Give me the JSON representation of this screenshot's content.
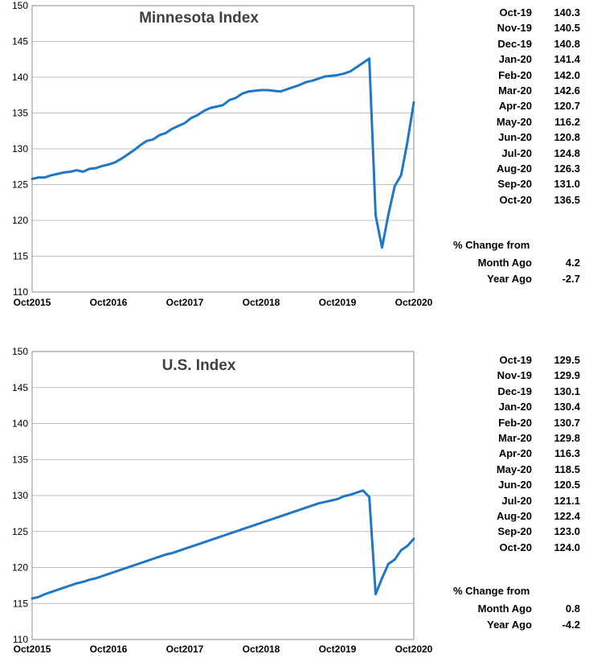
{
  "accent_color": "#1f77c6",
  "panels": [
    {
      "name": "minnesota",
      "side": {
        "months": [
          {
            "label": "Oct-19",
            "value": "140.3"
          },
          {
            "label": "Nov-19",
            "value": "140.5"
          },
          {
            "label": "Dec-19",
            "value": "140.8"
          },
          {
            "label": "Jan-20",
            "value": "141.4"
          },
          {
            "label": "Feb-20",
            "value": "142.0"
          },
          {
            "label": "Mar-20",
            "value": "142.6"
          },
          {
            "label": "Apr-20",
            "value": "120.7"
          },
          {
            "label": "May-20",
            "value": "116.2"
          },
          {
            "label": "Jun-20",
            "value": "120.8"
          },
          {
            "label": "Jul-20",
            "value": "124.8"
          },
          {
            "label": "Aug-20",
            "value": "126.3"
          },
          {
            "label": "Sep-20",
            "value": "131.0"
          },
          {
            "label": "Oct-20",
            "value": "136.5"
          }
        ],
        "change_header": "% Change from",
        "month_ago_label": "Month Ago",
        "month_ago_value": "4.2",
        "year_ago_label": "Year Ago",
        "year_ago_value": "-2.7"
      }
    },
    {
      "name": "us",
      "side": {
        "months": [
          {
            "label": "Oct-19",
            "value": "129.5"
          },
          {
            "label": "Nov-19",
            "value": "129.9"
          },
          {
            "label": "Dec-19",
            "value": "130.1"
          },
          {
            "label": "Jan-20",
            "value": "130.4"
          },
          {
            "label": "Feb-20",
            "value": "130.7"
          },
          {
            "label": "Mar-20",
            "value": "129.8"
          },
          {
            "label": "Apr-20",
            "value": "116.3"
          },
          {
            "label": "May-20",
            "value": "118.5"
          },
          {
            "label": "Jun-20",
            "value": "120.5"
          },
          {
            "label": "Jul-20",
            "value": "121.1"
          },
          {
            "label": "Aug-20",
            "value": "122.4"
          },
          {
            "label": "Sep-20",
            "value": "123.0"
          },
          {
            "label": "Oct-20",
            "value": "124.0"
          }
        ],
        "change_header": "% Change from",
        "month_ago_label": "Month Ago",
        "month_ago_value": "0.8",
        "year_ago_label": "Year Ago",
        "year_ago_value": "-4.2"
      }
    }
  ],
  "chart_data": [
    {
      "type": "line",
      "title": "Minnesota Index",
      "xlabel": "",
      "ylabel": "",
      "ylim": [
        110,
        150
      ],
      "yticks": [
        110,
        115,
        120,
        125,
        130,
        135,
        140,
        145,
        150
      ],
      "xlim": [
        "Oct-15",
        "Oct-20"
      ],
      "xticks": [
        "Oct2015",
        "Oct2016",
        "Oct2017",
        "Oct2018",
        "Oct2019",
        "Oct2020"
      ],
      "grid": true,
      "legend": "none",
      "series": [
        {
          "x": [
            "Oct-15",
            "Nov-15",
            "Dec-15",
            "Jan-16",
            "Feb-16",
            "Mar-16",
            "Apr-16",
            "May-16",
            "Jun-16",
            "Jul-16",
            "Aug-16",
            "Sep-16",
            "Oct-16",
            "Nov-16",
            "Dec-16",
            "Jan-17",
            "Feb-17",
            "Mar-17",
            "Apr-17",
            "May-17",
            "Jun-17",
            "Jul-17",
            "Aug-17",
            "Sep-17",
            "Oct-17",
            "Nov-17",
            "Dec-17",
            "Jan-18",
            "Feb-18",
            "Mar-18",
            "Apr-18",
            "May-18",
            "Jun-18",
            "Jul-18",
            "Aug-18",
            "Sep-18",
            "Oct-18",
            "Nov-18",
            "Dec-18",
            "Jan-19",
            "Feb-19",
            "Mar-19",
            "Apr-19",
            "May-19",
            "Jun-19",
            "Jul-19",
            "Aug-19",
            "Sep-19",
            "Oct-19",
            "Nov-19",
            "Dec-19",
            "Jan-20",
            "Feb-20",
            "Mar-20",
            "Apr-20",
            "May-20",
            "Jun-20",
            "Jul-20",
            "Aug-20",
            "Sep-20",
            "Oct-20"
          ],
          "values": [
            125.8,
            126.0,
            126.0,
            126.3,
            126.5,
            126.7,
            126.8,
            127.0,
            126.8,
            127.2,
            127.3,
            127.6,
            127.8,
            128.1,
            128.6,
            129.2,
            129.8,
            130.5,
            131.1,
            131.3,
            131.9,
            132.2,
            132.8,
            133.2,
            133.6,
            134.3,
            134.7,
            135.3,
            135.7,
            135.9,
            136.1,
            136.8,
            137.1,
            137.7,
            138.0,
            138.1,
            138.2,
            138.2,
            138.1,
            138.0,
            138.3,
            138.6,
            138.9,
            139.3,
            139.5,
            139.8,
            140.1,
            140.2,
            140.3,
            140.5,
            140.8,
            141.4,
            142.0,
            142.6,
            120.7,
            116.2,
            120.8,
            124.8,
            126.3,
            131.0,
            136.5
          ]
        }
      ]
    },
    {
      "type": "line",
      "title": "U.S. Index",
      "xlabel": "",
      "ylabel": "",
      "ylim": [
        110,
        150
      ],
      "yticks": [
        110,
        115,
        120,
        125,
        130,
        135,
        140,
        145,
        150
      ],
      "xlim": [
        "Oct-15",
        "Oct-20"
      ],
      "xticks": [
        "Oct2015",
        "Oct2016",
        "Oct2017",
        "Oct2018",
        "Oct2019",
        "Oct2020"
      ],
      "grid": true,
      "legend": "none",
      "series": [
        {
          "x": [
            "Oct-15",
            "Nov-15",
            "Dec-15",
            "Jan-16",
            "Feb-16",
            "Mar-16",
            "Apr-16",
            "May-16",
            "Jun-16",
            "Jul-16",
            "Aug-16",
            "Sep-16",
            "Oct-16",
            "Nov-16",
            "Dec-16",
            "Jan-17",
            "Feb-17",
            "Mar-17",
            "Apr-17",
            "May-17",
            "Jun-17",
            "Jul-17",
            "Aug-17",
            "Sep-17",
            "Oct-17",
            "Nov-17",
            "Dec-17",
            "Jan-18",
            "Feb-18",
            "Mar-18",
            "Apr-18",
            "May-18",
            "Jun-18",
            "Jul-18",
            "Aug-18",
            "Sep-18",
            "Oct-18",
            "Nov-18",
            "Dec-18",
            "Jan-19",
            "Feb-19",
            "Mar-19",
            "Apr-19",
            "May-19",
            "Jun-19",
            "Jul-19",
            "Aug-19",
            "Sep-19",
            "Oct-19",
            "Nov-19",
            "Dec-19",
            "Jan-20",
            "Feb-20",
            "Mar-20",
            "Apr-20",
            "May-20",
            "Jun-20",
            "Jul-20",
            "Aug-20",
            "Sep-20",
            "Oct-20"
          ],
          "values": [
            115.7,
            115.9,
            116.3,
            116.6,
            116.9,
            117.2,
            117.5,
            117.8,
            118.0,
            118.3,
            118.5,
            118.8,
            119.1,
            119.4,
            119.7,
            120.0,
            120.3,
            120.6,
            120.9,
            121.2,
            121.5,
            121.8,
            122.0,
            122.3,
            122.6,
            122.9,
            123.2,
            123.5,
            123.8,
            124.1,
            124.4,
            124.7,
            125.0,
            125.3,
            125.6,
            125.9,
            126.2,
            126.5,
            126.8,
            127.1,
            127.4,
            127.7,
            128.0,
            128.3,
            128.6,
            128.9,
            129.1,
            129.3,
            129.5,
            129.9,
            130.1,
            130.4,
            130.7,
            129.8,
            116.3,
            118.5,
            120.5,
            121.1,
            122.4,
            123.0,
            124.0
          ]
        }
      ]
    }
  ]
}
